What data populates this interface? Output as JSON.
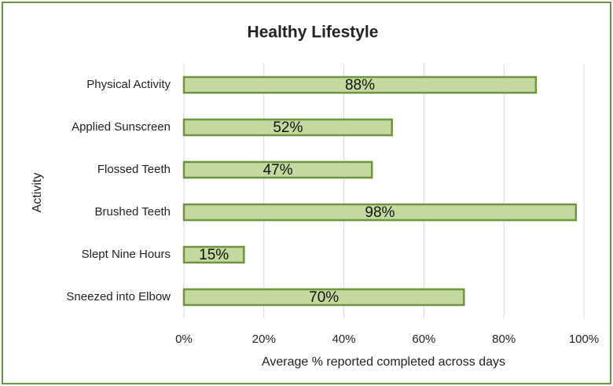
{
  "chart_data": {
    "type": "bar",
    "orientation": "horizontal",
    "title": "Healthy Lifestyle",
    "x_label": "Average % reported completed across days",
    "y_label": "Activity",
    "categories": [
      "Physical Activity",
      "Applied Sunscreen",
      "Flossed Teeth",
      "Brushed Teeth",
      "Slept Nine Hours",
      "Sneezed into Elbow"
    ],
    "values": [
      88,
      52,
      47,
      98,
      15,
      70
    ],
    "value_labels": [
      "88%",
      "52%",
      "47%",
      "98%",
      "15%",
      "70%"
    ],
    "color": "#c4d9a0",
    "edge_color": "#6e9440",
    "xlim": [
      0,
      100
    ],
    "xticks": [
      {
        "value": 0,
        "label": "0%"
      },
      {
        "value": 20,
        "label": "20%"
      },
      {
        "value": 40,
        "label": "40%"
      },
      {
        "value": 60,
        "label": "60%"
      },
      {
        "value": 80,
        "label": "80%"
      },
      {
        "value": 100,
        "label": "100%"
      }
    ],
    "grid": true
  }
}
